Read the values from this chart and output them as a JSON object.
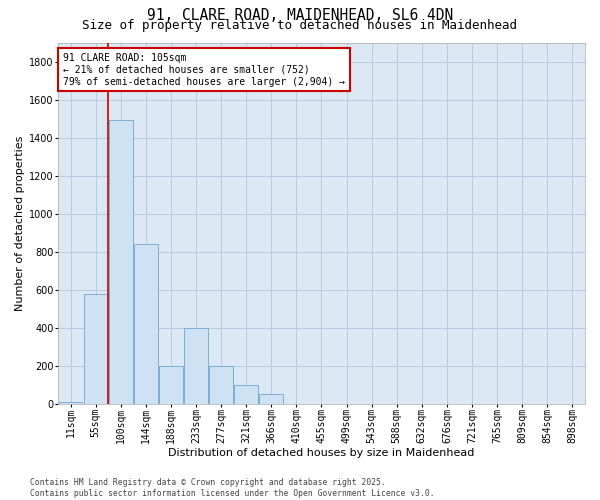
{
  "title_line1": "91, CLARE ROAD, MAIDENHEAD, SL6 4DN",
  "title_line2": "Size of property relative to detached houses in Maidenhead",
  "xlabel": "Distribution of detached houses by size in Maidenhead",
  "ylabel": "Number of detached properties",
  "categories": [
    "11sqm",
    "55sqm",
    "100sqm",
    "144sqm",
    "188sqm",
    "233sqm",
    "277sqm",
    "321sqm",
    "366sqm",
    "410sqm",
    "455sqm",
    "499sqm",
    "543sqm",
    "588sqm",
    "632sqm",
    "676sqm",
    "721sqm",
    "765sqm",
    "809sqm",
    "854sqm",
    "898sqm"
  ],
  "values": [
    10,
    580,
    1490,
    840,
    200,
    400,
    200,
    100,
    50,
    0,
    0,
    0,
    0,
    0,
    0,
    0,
    0,
    0,
    0,
    0,
    0
  ],
  "bar_color": "#cfe2f3",
  "bar_edge_color": "#7bafd4",
  "vline_index": 2,
  "vline_color": "#cc0000",
  "annotation_text": "91 CLARE ROAD: 105sqm\n← 21% of detached houses are smaller (752)\n79% of semi-detached houses are larger (2,904) →",
  "annotation_box_color": "#cc0000",
  "background_color": "#ffffff",
  "plot_bg_color": "#dce9f5",
  "grid_color": "#b8ccdf",
  "footnote": "Contains HM Land Registry data © Crown copyright and database right 2025.\nContains public sector information licensed under the Open Government Licence v3.0.",
  "ylim": [
    0,
    1900
  ],
  "yticks": [
    0,
    200,
    400,
    600,
    800,
    1000,
    1200,
    1400,
    1600,
    1800
  ],
  "title_fontsize": 10.5,
  "subtitle_fontsize": 9,
  "axis_label_fontsize": 8,
  "tick_fontsize": 7,
  "annot_fontsize": 7,
  "footnote_fontsize": 5.8
}
